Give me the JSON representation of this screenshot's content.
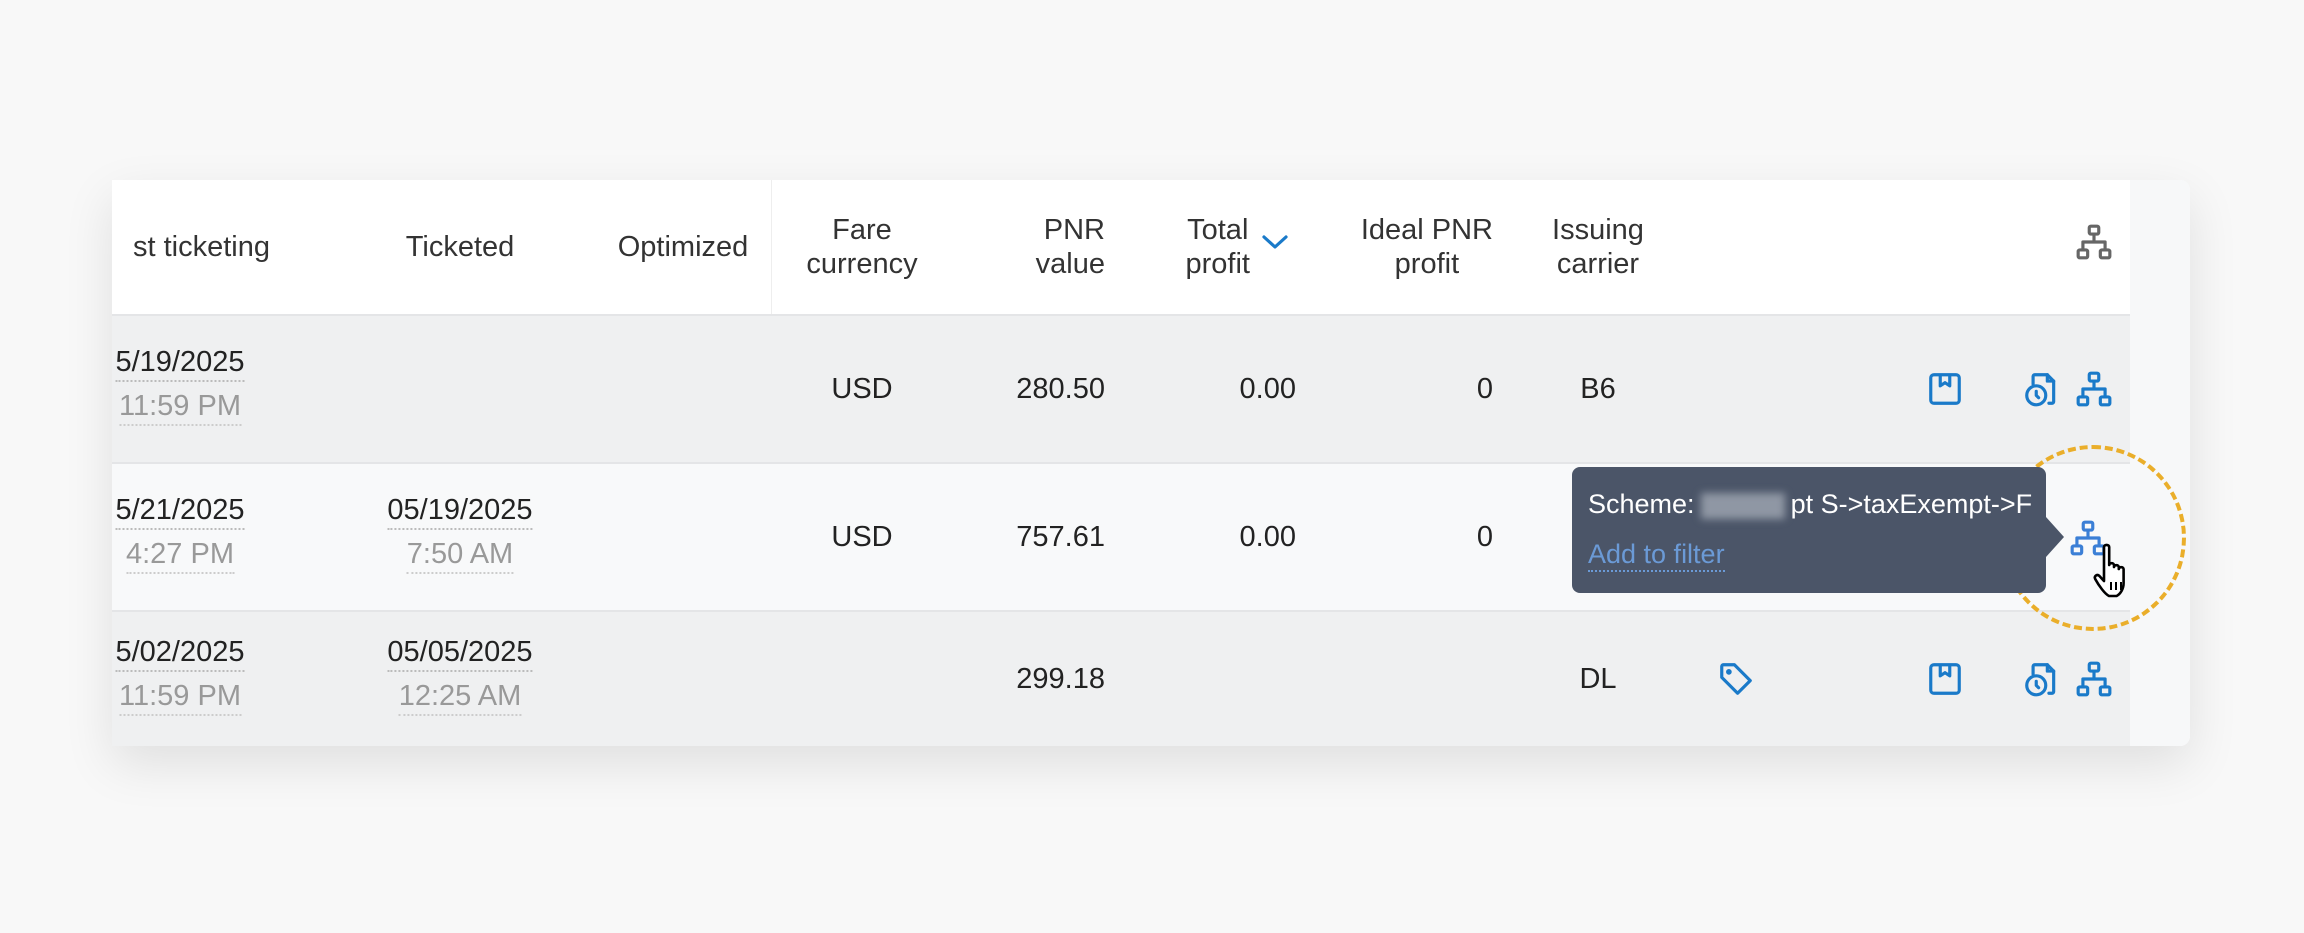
{
  "table": {
    "columns": [
      {
        "key": "last_ticketing",
        "label": "Last ticketing"
      },
      {
        "key": "ticketed",
        "label": "Ticketed"
      },
      {
        "key": "optimized",
        "label": "Optimized"
      },
      {
        "key": "fare_currency",
        "label": "Fare currency"
      },
      {
        "key": "pnr_value",
        "label": "PNR value"
      },
      {
        "key": "total_profit",
        "label": "Total profit",
        "sorted": "descending"
      },
      {
        "key": "ideal_pnr_profit",
        "label": "Ideal PNR profit"
      },
      {
        "key": "issuing_carrier",
        "label": "Issuing carrier"
      }
    ],
    "header_labels": {
      "last_ticketing": "st ticketing",
      "ticketed": "Ticketed",
      "optimized": "Optimized",
      "fare_currency_1": "Fare",
      "fare_currency_2": "currency",
      "pnr_value_1": "PNR",
      "pnr_value_2": "value",
      "total_profit_1": "Total",
      "total_profit_2": "profit",
      "ideal_pnr_profit_1": "Ideal PNR",
      "ideal_pnr_profit_2": "profit",
      "issuing_carrier_1": "Issuing",
      "issuing_carrier_2": "carrier"
    },
    "rows": [
      {
        "last_ticketing_date": "5/19/2025",
        "last_ticketing_time": "11:59 PM",
        "ticketed_date": "",
        "ticketed_time": "",
        "optimized": "",
        "fare_currency": "USD",
        "pnr_value": "280.50",
        "total_profit": "0.00",
        "ideal_pnr_profit": "0",
        "issuing_carrier": "B6",
        "has_tag": false
      },
      {
        "last_ticketing_date": "5/21/2025",
        "last_ticketing_time": "4:27 PM",
        "ticketed_date": "05/19/2025",
        "ticketed_time": "7:50 AM",
        "optimized": "",
        "fare_currency": "USD",
        "pnr_value": "757.61",
        "total_profit": "0.00",
        "ideal_pnr_profit": "0",
        "issuing_carrier": "",
        "has_tag": false
      },
      {
        "last_ticketing_date": "5/02/2025",
        "last_ticketing_time": "11:59 PM",
        "ticketed_date": "05/05/2025",
        "ticketed_time": "12:25 AM",
        "optimized": "",
        "fare_currency": "",
        "pnr_value": "299.18",
        "total_profit": "",
        "ideal_pnr_profit": "",
        "issuing_carrier": "DL",
        "has_tag": true
      }
    ]
  },
  "tooltip": {
    "prefix": "Scheme:",
    "suffix": "pt S->taxExempt->F",
    "action": "Add to filter"
  },
  "colors": {
    "accent": "#1a7ac9",
    "tooltip_bg": "#4b5568",
    "highlight": "#eaae2a",
    "header_icon": "#666666"
  },
  "icons": [
    "sitemap-icon",
    "bookmark-icon",
    "document-clock-icon",
    "tag-icon",
    "chevron-down-icon",
    "pointer-hand-cursor"
  ]
}
